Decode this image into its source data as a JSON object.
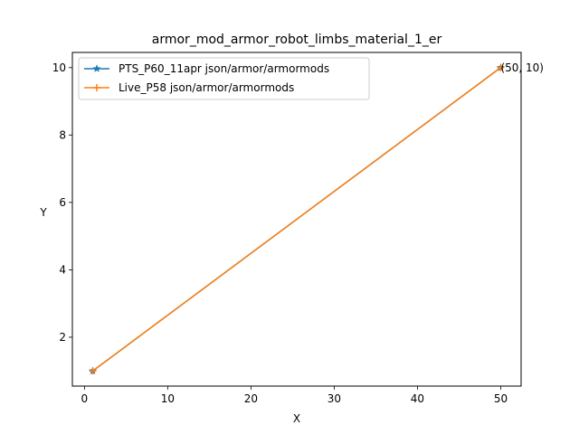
{
  "chart_data": {
    "type": "line",
    "title": "armor_mod_armor_robot_limbs_material_1_er",
    "xlabel": "X",
    "ylabel": "Y",
    "xlim": [
      -1.45,
      52.45
    ],
    "ylim": [
      0.55,
      10.45
    ],
    "xticks": [
      0,
      10,
      20,
      30,
      40,
      50
    ],
    "yticks": [
      2,
      4,
      6,
      8,
      10
    ],
    "grid": false,
    "legend_position": "top-left",
    "series": [
      {
        "name": "PTS_P60_11apr json/armor/armormods",
        "color": "#1f77b4",
        "marker": "star",
        "x": [
          1,
          50
        ],
        "y": [
          1,
          10
        ]
      },
      {
        "name": "Live_P58 json/armor/armormods",
        "color": "#ff7f0e",
        "marker": "plus",
        "x": [
          1,
          50
        ],
        "y": [
          1,
          10
        ]
      }
    ],
    "annotations": [
      {
        "text": "(50, 10)",
        "x": 50,
        "y": 10
      }
    ]
  }
}
